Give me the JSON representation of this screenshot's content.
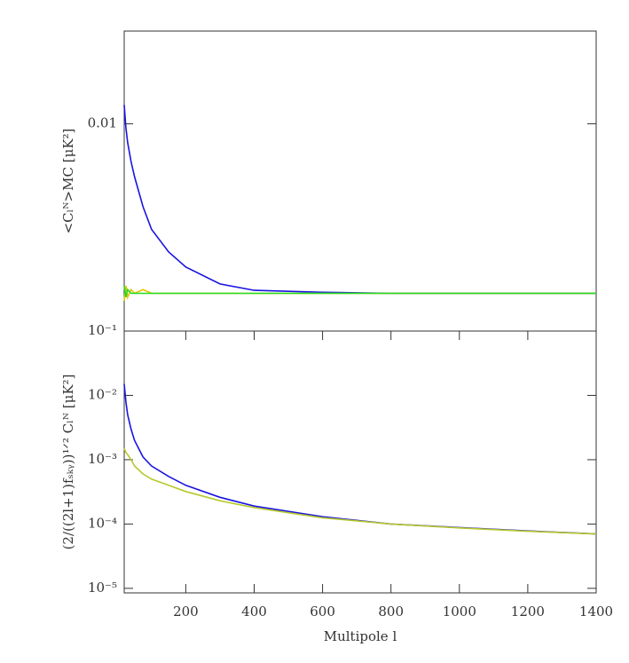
{
  "chart_data": [
    {
      "type": "line",
      "ylabel": "<Cₗᴺ>MC [μK²]",
      "xlim": [
        20,
        1400
      ],
      "ylim": [
        0.0045,
        0.01246
      ],
      "yticks": [
        0.01
      ],
      "log_y": false,
      "x": [
        20,
        25,
        30,
        40,
        50,
        75,
        100,
        150,
        200,
        300,
        400,
        600,
        800,
        1000,
        1200,
        1400
      ],
      "series": [
        {
          "name": "blue",
          "color": "#1a14e0",
          "values": [
            0.0105,
            0.0099,
            0.0095,
            0.009,
            0.0086,
            0.0078,
            0.0072,
            0.0066,
            0.0062,
            0.00575,
            0.00558,
            0.00553,
            0.0055,
            0.0055,
            0.0055,
            0.0055
          ]
        },
        {
          "name": "yellow",
          "color": "#f0c000",
          "values": [
            0.0053,
            0.0057,
            0.0054,
            0.0056,
            0.0055,
            0.0056,
            0.0055,
            0.0055,
            0.0055,
            0.0055,
            0.0055,
            0.0055,
            0.0055,
            0.0055,
            0.0055,
            0.0055
          ]
        },
        {
          "name": "green",
          "color": "#22dd22",
          "values": [
            0.0057,
            0.0054,
            0.0056,
            0.0055,
            0.0055,
            0.0055,
            0.0055,
            0.0055,
            0.0055,
            0.0055,
            0.0055,
            0.0055,
            0.0055,
            0.0055,
            0.0055,
            0.0055
          ]
        }
      ]
    },
    {
      "type": "line",
      "ylabel": "(2/((2l+1)fₛₖᵧ))¹ᐟ² Cₗᴺ [μK²]",
      "xlabel": "Multipole l",
      "xlim": [
        20,
        1400
      ],
      "xticks": [
        200,
        400,
        600,
        800,
        1000,
        1200,
        1400
      ],
      "ylim": [
        8.5e-06,
        0.1
      ],
      "log_y": true,
      "yticks": [
        {
          "value": 0.1,
          "label": "10⁻¹"
        },
        {
          "value": 0.01,
          "label": "10⁻²"
        },
        {
          "value": 0.001,
          "label": "10⁻³"
        },
        {
          "value": 0.0001,
          "label": "10⁻⁴"
        },
        {
          "value": 1e-05,
          "label": "10⁻⁵"
        }
      ],
      "x": [
        20,
        25,
        30,
        40,
        50,
        75,
        100,
        150,
        200,
        300,
        400,
        600,
        800,
        1000,
        1200,
        1400
      ],
      "series": [
        {
          "name": "blue",
          "color": "#1a14e0",
          "values": [
            0.015,
            0.008,
            0.005,
            0.003,
            0.002,
            0.0011,
            0.0008,
            0.00055,
            0.0004,
            0.00026,
            0.00019,
            0.00013,
            0.0001,
            8.8e-05,
            7.8e-05,
            7e-05
          ]
        },
        {
          "name": "yellow",
          "color": "#b8c82a",
          "values": [
            0.0015,
            0.0013,
            0.0012,
            0.001,
            0.0008,
            0.0006,
            0.0005,
            0.0004,
            0.00032,
            0.00023,
            0.00018,
            0.000125,
            0.0001,
            8.7e-05,
            7.7e-05,
            7e-05
          ]
        }
      ]
    }
  ]
}
